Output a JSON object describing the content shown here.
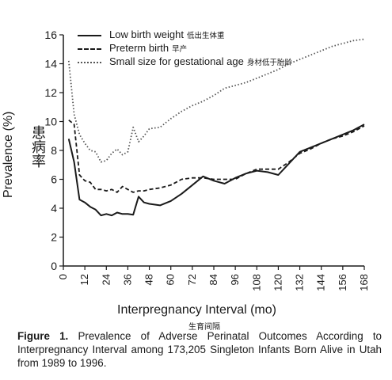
{
  "chart_data": {
    "type": "line",
    "xlabel": "Interpregnancy Interval (mo)",
    "xlabel_zh": "生育间隔",
    "ylabel": "Prevalence (%)",
    "ylabel_zh": "患病率",
    "xlim": [
      0,
      168
    ],
    "ylim": [
      0,
      16
    ],
    "x_ticks": [
      0,
      12,
      24,
      36,
      48,
      60,
      72,
      84,
      96,
      108,
      120,
      132,
      144,
      156,
      168
    ],
    "y_ticks": [
      0,
      2,
      4,
      6,
      8,
      10,
      12,
      14,
      16
    ],
    "legend_position": "top-left",
    "series": [
      {
        "name": "Low birth weight",
        "name_zh": "低出生体重",
        "style": "solid",
        "x": [
          3,
          6,
          9,
          12,
          15,
          18,
          21,
          24,
          27,
          30,
          33,
          36,
          39,
          42,
          45,
          48,
          54,
          60,
          66,
          72,
          78,
          84,
          90,
          96,
          102,
          108,
          114,
          120,
          126,
          132,
          138,
          144,
          150,
          156,
          162,
          168
        ],
        "y": [
          8.8,
          7.2,
          4.6,
          4.4,
          4.1,
          3.9,
          3.5,
          3.6,
          3.5,
          3.7,
          3.6,
          3.6,
          3.55,
          4.8,
          4.4,
          4.3,
          4.2,
          4.5,
          5.0,
          5.6,
          6.2,
          5.9,
          5.7,
          6.1,
          6.4,
          6.6,
          6.5,
          6.3,
          7.1,
          7.9,
          8.2,
          8.5,
          8.8,
          9.1,
          9.4,
          9.8
        ]
      },
      {
        "name": "Preterm birth",
        "name_zh": "早产",
        "style": "dashed",
        "x": [
          3,
          6,
          9,
          12,
          15,
          18,
          21,
          24,
          27,
          30,
          33,
          36,
          39,
          42,
          45,
          48,
          54,
          60,
          66,
          72,
          78,
          84,
          90,
          96,
          102,
          108,
          114,
          120,
          126,
          132,
          138,
          144,
          150,
          156,
          162,
          168
        ],
        "y": [
          10.1,
          9.8,
          6.3,
          5.9,
          5.8,
          5.3,
          5.3,
          5.2,
          5.3,
          5.1,
          5.5,
          5.3,
          5.1,
          5.2,
          5.2,
          5.3,
          5.4,
          5.6,
          6.0,
          6.1,
          6.1,
          6.0,
          6.0,
          6.0,
          6.4,
          6.7,
          6.7,
          6.7,
          7.2,
          7.8,
          8.1,
          8.5,
          8.8,
          9.0,
          9.3,
          9.7
        ]
      },
      {
        "name": "Small size for gestational age",
        "name_zh": "身材低于胎龄",
        "style": "dotted",
        "x": [
          3,
          6,
          9,
          12,
          15,
          18,
          21,
          24,
          27,
          30,
          33,
          36,
          39,
          42,
          45,
          48,
          54,
          60,
          66,
          72,
          78,
          84,
          90,
          96,
          102,
          108,
          114,
          120,
          126,
          132,
          138,
          144,
          150,
          156,
          162,
          168
        ],
        "y": [
          14.2,
          10.5,
          9.1,
          8.5,
          8.0,
          7.9,
          7.2,
          7.3,
          7.8,
          8.1,
          7.7,
          7.9,
          9.6,
          8.6,
          9.0,
          9.5,
          9.6,
          10.2,
          10.7,
          11.1,
          11.4,
          11.8,
          12.3,
          12.5,
          12.7,
          13.0,
          13.3,
          13.6,
          14.0,
          14.3,
          14.6,
          14.9,
          15.2,
          15.4,
          15.6,
          15.7
        ]
      }
    ]
  },
  "caption": {
    "prefix": "Figure 1.",
    "text": " Prevalence of Adverse Perinatal Outcomes According to Interpregnancy Interval among 173,205 Singleton Infants Born Alive in Utah from 1989 to 1996."
  }
}
